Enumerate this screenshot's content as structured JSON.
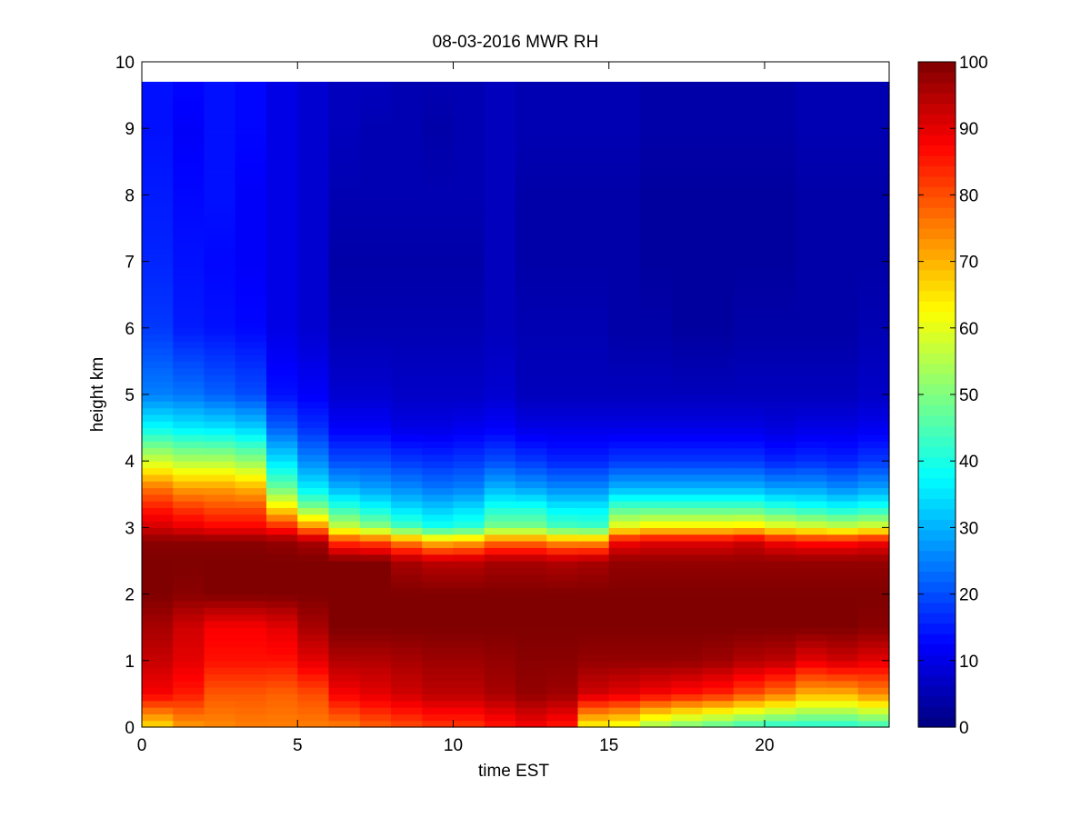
{
  "chart_data": {
    "type": "heatmap",
    "title": "08-03-2016 MWR RH",
    "xlabel": "time EST",
    "ylabel": "height km",
    "xlim": [
      0,
      24
    ],
    "ylim": [
      0,
      10
    ],
    "xticks": [
      0,
      5,
      10,
      15,
      20
    ],
    "yticks": [
      0,
      1,
      2,
      3,
      4,
      5,
      6,
      7,
      8,
      9,
      10
    ],
    "colorbar": {
      "range": [
        0,
        100
      ],
      "ticks": [
        0,
        10,
        20,
        30,
        40,
        50,
        60,
        70,
        80,
        90,
        100
      ],
      "colormap": "jet"
    },
    "grid": false,
    "time_hours": [
      0,
      1,
      2,
      3,
      4,
      5,
      6,
      7,
      8,
      9,
      10,
      11,
      12,
      13,
      14,
      15,
      16,
      17,
      18,
      19,
      20,
      21,
      22,
      23
    ],
    "profile_heights_km": [
      0,
      0.5,
      1,
      1.5,
      2,
      2.5,
      2.8,
      3,
      3.3,
      3.6,
      4,
      4.5,
      5,
      6,
      7,
      8,
      9,
      9.7
    ],
    "rh_profiles_percent": [
      [
        65,
        88,
        93,
        96,
        100,
        100,
        99,
        92,
        85,
        76,
        58,
        38,
        25,
        18,
        16,
        15,
        14,
        14
      ],
      [
        72,
        85,
        90,
        92,
        99,
        100,
        99,
        90,
        82,
        72,
        55,
        36,
        24,
        15,
        14,
        13,
        12,
        13
      ],
      [
        74,
        79,
        86,
        88,
        100,
        100,
        99,
        88,
        80,
        72,
        55,
        35,
        22,
        14,
        13,
        14,
        14,
        14
      ],
      [
        75,
        79,
        86,
        88,
        100,
        100,
        99,
        88,
        80,
        70,
        52,
        33,
        20,
        13,
        12,
        12,
        13,
        13
      ],
      [
        75,
        78,
        86,
        90,
        100,
        100,
        98,
        85,
        65,
        48,
        35,
        22,
        14,
        10,
        10,
        10,
        10,
        10
      ],
      [
        75,
        80,
        90,
        96,
        100,
        100,
        96,
        75,
        50,
        36,
        26,
        17,
        12,
        8,
        8,
        8,
        8,
        8
      ],
      [
        75,
        88,
        95,
        100,
        100,
        100,
        82,
        58,
        42,
        30,
        20,
        12,
        8,
        5,
        4,
        5,
        6,
        6
      ],
      [
        78,
        90,
        95,
        100,
        100,
        100,
        80,
        52,
        38,
        28,
        20,
        12,
        8,
        5,
        4,
        5,
        5,
        6
      ],
      [
        80,
        92,
        96,
        100,
        100,
        96,
        74,
        45,
        34,
        26,
        18,
        10,
        7,
        5,
        4,
        5,
        5,
        5
      ],
      [
        82,
        94,
        97,
        100,
        100,
        94,
        68,
        40,
        32,
        24,
        17,
        10,
        7,
        5,
        4,
        5,
        4,
        5
      ],
      [
        82,
        94,
        97,
        100,
        100,
        94,
        70,
        42,
        34,
        25,
        18,
        11,
        7,
        5,
        4,
        5,
        5,
        5
      ],
      [
        85,
        96,
        98,
        100,
        100,
        96,
        76,
        50,
        40,
        30,
        20,
        12,
        8,
        6,
        6,
        6,
        6,
        6
      ],
      [
        88,
        98,
        99,
        100,
        100,
        96,
        76,
        50,
        40,
        28,
        18,
        10,
        6,
        5,
        4,
        4,
        5,
        5
      ],
      [
        85,
        97,
        99,
        100,
        100,
        95,
        72,
        45,
        36,
        26,
        16,
        10,
        6,
        5,
        4,
        4,
        5,
        5
      ],
      [
        62,
        92,
        98,
        100,
        100,
        96,
        72,
        44,
        36,
        26,
        16,
        10,
        6,
        5,
        4,
        4,
        5,
        5
      ],
      [
        60,
        90,
        98,
        100,
        100,
        98,
        88,
        62,
        45,
        30,
        18,
        10,
        6,
        4,
        4,
        4,
        5,
        5
      ],
      [
        52,
        88,
        98,
        100,
        100,
        98,
        90,
        65,
        45,
        30,
        18,
        10,
        6,
        4,
        3,
        3,
        4,
        4
      ],
      [
        48,
        86,
        98,
        100,
        100,
        98,
        90,
        65,
        45,
        30,
        18,
        10,
        6,
        3,
        3,
        3,
        4,
        4
      ],
      [
        45,
        84,
        97,
        100,
        100,
        98,
        90,
        65,
        45,
        30,
        18,
        10,
        6,
        3,
        3,
        3,
        4,
        4
      ],
      [
        42,
        80,
        95,
        100,
        100,
        98,
        92,
        66,
        45,
        30,
        18,
        10,
        6,
        4,
        3,
        3,
        4,
        4
      ],
      [
        40,
        76,
        94,
        100,
        100,
        98,
        88,
        62,
        42,
        28,
        16,
        9,
        6,
        4,
        3,
        3,
        4,
        4
      ],
      [
        40,
        70,
        90,
        100,
        100,
        98,
        86,
        60,
        40,
        28,
        17,
        10,
        6,
        4,
        4,
        4,
        5,
        5
      ],
      [
        40,
        70,
        92,
        100,
        100,
        98,
        86,
        58,
        38,
        26,
        16,
        10,
        6,
        4,
        4,
        4,
        5,
        5
      ],
      [
        42,
        74,
        90,
        99,
        100,
        98,
        88,
        60,
        40,
        28,
        18,
        11,
        7,
        5,
        4,
        4,
        5,
        5
      ]
    ]
  }
}
